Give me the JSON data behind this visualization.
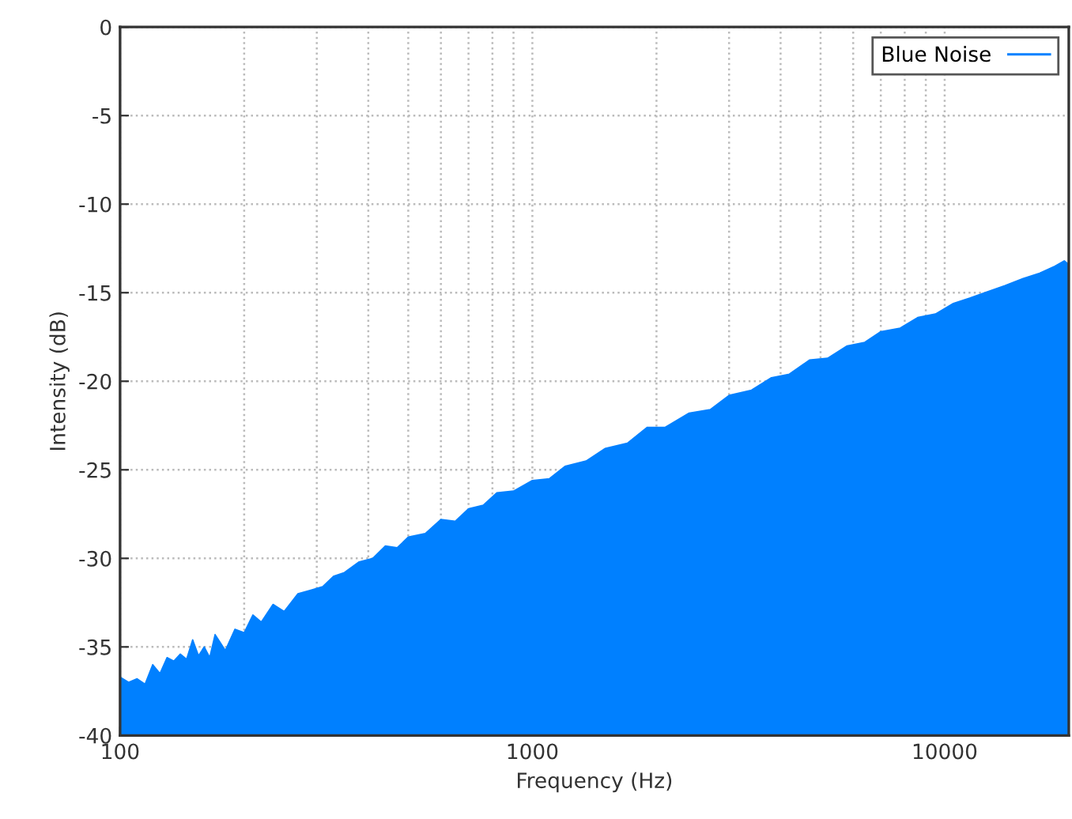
{
  "chart_data": {
    "type": "area",
    "xlabel": "Frequency (Hz)",
    "ylabel": "Intensity (dB)",
    "log": "x",
    "grid": true,
    "legend": "top right",
    "xlim": [
      100,
      20000
    ],
    "ylim": [
      -40,
      0
    ],
    "xticks": [
      100,
      {
        "value": 200,
        "label": null
      },
      {
        "value": 300,
        "label": null
      },
      {
        "value": 400,
        "label": null
      },
      {
        "value": 500,
        "label": null
      },
      {
        "value": 600,
        "label": null
      },
      {
        "value": 700,
        "label": null
      },
      {
        "value": 800,
        "label": null
      },
      {
        "value": 900,
        "label": null
      },
      1000,
      {
        "value": 2000,
        "label": null
      },
      {
        "value": 3000,
        "label": null
      },
      {
        "value": 4000,
        "label": null
      },
      {
        "value": 5000,
        "label": null
      },
      {
        "value": 6000,
        "label": null
      },
      {
        "value": 7000,
        "label": null
      },
      {
        "value": 8000,
        "label": null
      },
      {
        "value": 9000,
        "label": null
      },
      10000
    ],
    "yticks": [
      -40,
      -35,
      -30,
      -25,
      -20,
      -15,
      -10,
      -5,
      0
    ],
    "x": [
      100,
      105,
      110,
      115,
      120,
      125,
      130,
      135,
      140,
      145,
      150,
      155,
      160,
      165,
      170,
      180,
      190,
      200,
      210,
      220,
      235,
      250,
      270,
      290,
      310,
      330,
      350,
      380,
      410,
      440,
      470,
      500,
      550,
      600,
      650,
      700,
      760,
      820,
      900,
      1000,
      1100,
      1200,
      1350,
      1500,
      1700,
      1900,
      2100,
      2400,
      2700,
      3000,
      3400,
      3800,
      4200,
      4700,
      5200,
      5800,
      6400,
      7000,
      7800,
      8600,
      9500,
      10500,
      11500,
      12500,
      14000,
      15500,
      17000,
      18500,
      19500,
      20000
    ],
    "series": [
      {
        "name": "Blue Noise",
        "color": "#0080ff",
        "values": [
          -36.7,
          -37.0,
          -36.8,
          -37.1,
          -36.0,
          -36.5,
          -35.6,
          -35.8,
          -35.4,
          -35.7,
          -34.6,
          -35.5,
          -35.0,
          -35.6,
          -34.3,
          -35.2,
          -34.0,
          -34.2,
          -33.2,
          -33.6,
          -32.6,
          -33.0,
          -32.0,
          -31.8,
          -31.6,
          -31.0,
          -30.8,
          -30.2,
          -30.0,
          -29.3,
          -29.4,
          -28.8,
          -28.6,
          -27.8,
          -27.9,
          -27.2,
          -27.0,
          -26.3,
          -26.2,
          -25.6,
          -25.5,
          -24.8,
          -24.5,
          -23.8,
          -23.5,
          -22.6,
          -22.6,
          -21.8,
          -21.6,
          -20.8,
          -20.5,
          -19.8,
          -19.6,
          -18.8,
          -18.7,
          -18.0,
          -17.8,
          -17.2,
          -17.0,
          -16.4,
          -16.2,
          -15.6,
          -15.3,
          -15.0,
          -14.6,
          -14.2,
          -13.9,
          -13.5,
          -13.2,
          -13.4
        ]
      }
    ]
  }
}
